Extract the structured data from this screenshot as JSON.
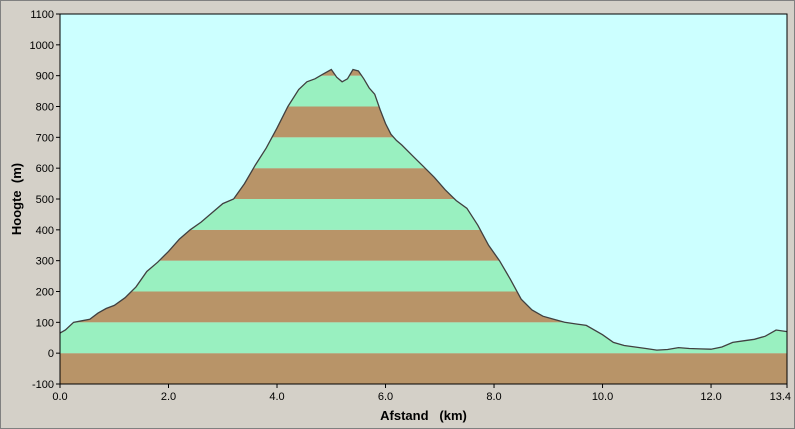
{
  "chart_data": {
    "type": "area",
    "title": "",
    "xlabel": "Afstand   (km)",
    "ylabel": "Hoogte  (m)",
    "xlim": [
      0,
      13.4
    ],
    "ylim": [
      -100,
      1100
    ],
    "x_ticks": [
      "0.0",
      "2.0",
      "4.0",
      "6.0",
      "8.0",
      "10.0",
      "12.0",
      "13.4"
    ],
    "x_tick_values": [
      0,
      2,
      4,
      6,
      8,
      10,
      12,
      13.4
    ],
    "y_ticks": [
      "-100",
      "0",
      "100",
      "200",
      "300",
      "400",
      "500",
      "600",
      "700",
      "800",
      "900",
      "1000",
      "1100"
    ],
    "y_tick_values": [
      -100,
      0,
      100,
      200,
      300,
      400,
      500,
      600,
      700,
      800,
      900,
      1000,
      1100
    ],
    "grid": false,
    "legend": "none",
    "colors": {
      "background": "#d4d0c8",
      "plot_background": "#ccffff",
      "band_light": "#99f0c0",
      "band_dark": "#b89468",
      "profile_line": "#404040"
    },
    "band_size": 100,
    "series": [
      {
        "x": [
          0,
          0.1,
          0.25,
          0.4,
          0.55,
          0.7,
          0.85,
          1.0,
          1.2,
          1.4,
          1.6,
          1.8,
          2.0,
          2.2,
          2.4,
          2.6,
          2.8,
          3.0,
          3.2,
          3.4,
          3.6,
          3.8,
          4.0,
          4.2,
          4.4,
          4.55,
          4.7,
          4.85,
          5.0,
          5.1,
          5.2,
          5.3,
          5.4,
          5.5,
          5.6,
          5.7,
          5.8,
          5.9,
          6.0,
          6.1,
          6.2,
          6.3,
          6.5,
          6.7,
          6.9,
          7.1,
          7.3,
          7.5,
          7.7,
          7.9,
          8.1,
          8.3,
          8.5,
          8.7,
          8.9,
          9.1,
          9.3,
          9.5,
          9.7,
          10.0,
          10.2,
          10.4,
          10.6,
          10.8,
          11.0,
          11.2,
          11.4,
          11.6,
          11.8,
          12.0,
          12.2,
          12.4,
          12.6,
          12.8,
          13.0,
          13.2,
          13.4
        ],
        "y": [
          65,
          75,
          100,
          105,
          110,
          130,
          145,
          155,
          180,
          215,
          265,
          295,
          330,
          370,
          400,
          425,
          455,
          485,
          500,
          550,
          610,
          665,
          730,
          800,
          855,
          880,
          890,
          905,
          920,
          895,
          880,
          890,
          920,
          915,
          890,
          860,
          840,
          790,
          745,
          710,
          690,
          675,
          640,
          605,
          570,
          530,
          495,
          470,
          415,
          350,
          300,
          240,
          175,
          140,
          120,
          110,
          100,
          95,
          90,
          60,
          35,
          25,
          20,
          15,
          10,
          12,
          18,
          15,
          14,
          13,
          20,
          35,
          40,
          45,
          55,
          75,
          70
        ]
      }
    ]
  }
}
